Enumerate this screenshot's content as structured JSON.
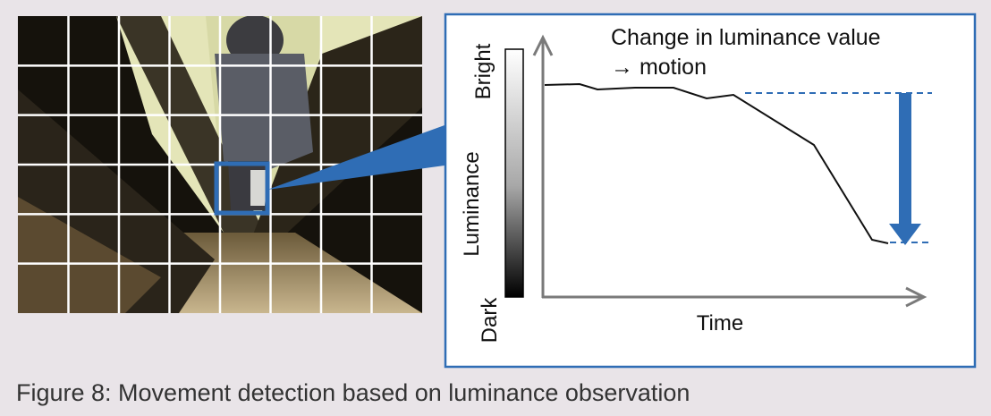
{
  "figure": {
    "graph": {
      "luminance_scale": {
        "top": "Bright",
        "label": "Luminance",
        "bottom": "Dark"
      },
      "x_axis_label": "Time",
      "annotation": [
        "Change in luminance value",
        "→ motion"
      ]
    },
    "caption": "Figure 8: Movement detection based on luminance observation"
  }
}
